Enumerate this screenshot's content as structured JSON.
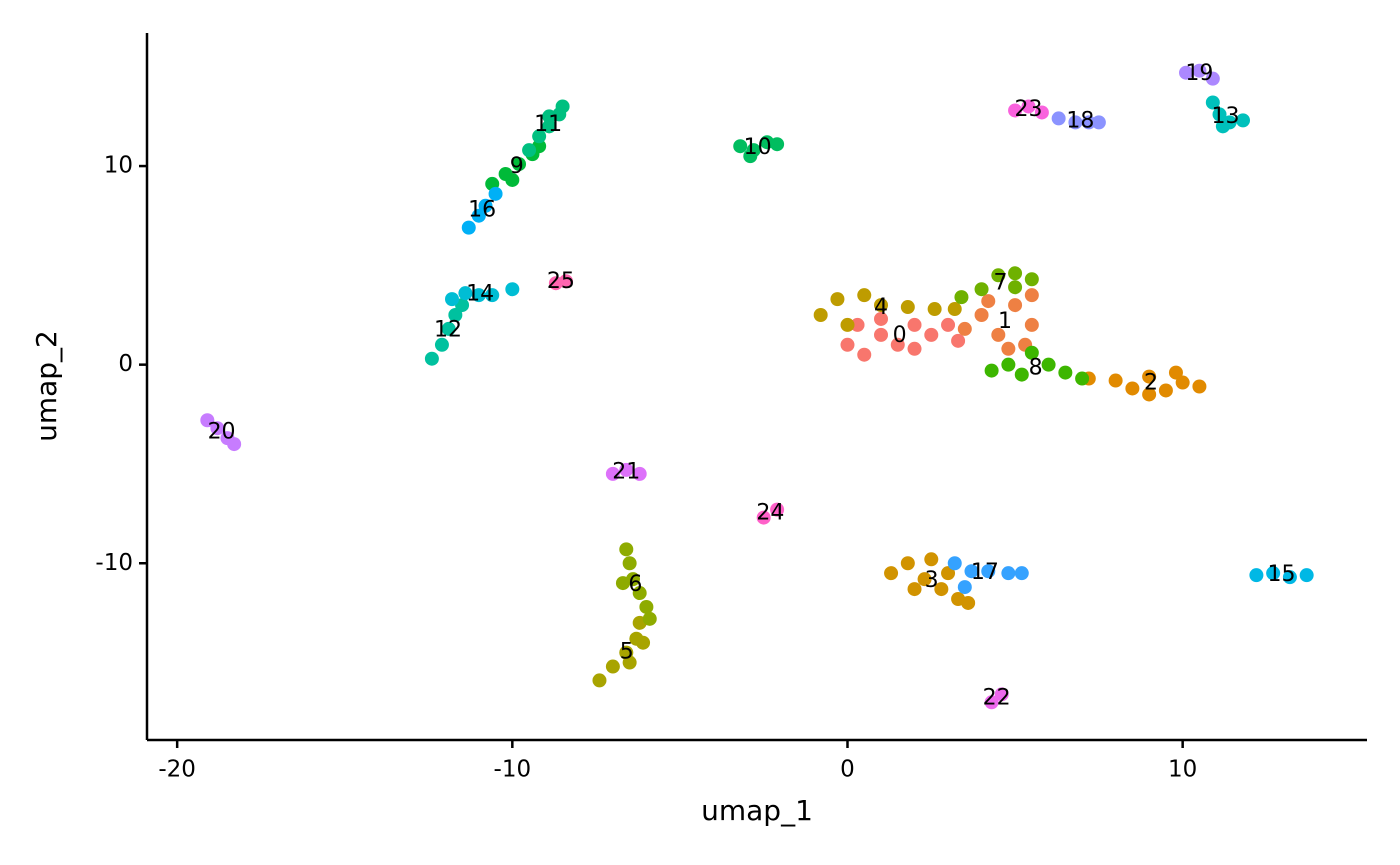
{
  "chart_data": {
    "type": "scatter",
    "xlabel": "umap_1",
    "ylabel": "umap_2",
    "xlim": [
      -20.9,
      15.5
    ],
    "ylim": [
      -18.9,
      16.7
    ],
    "xticks": [
      -20,
      -10,
      0,
      10
    ],
    "yticks": [
      -10,
      0,
      10
    ],
    "grid": false,
    "series": [
      {
        "name": "0",
        "color": "#F8766D",
        "x": [
          0,
          0.5,
          1,
          1.5,
          2,
          2.5,
          3,
          3.3,
          1,
          0.3,
          2
        ],
        "y": [
          1,
          0.5,
          1.5,
          1,
          2,
          1.5,
          2,
          1.2,
          2.3,
          2,
          0.8
        ]
      },
      {
        "name": "1",
        "color": "#EE8043",
        "x": [
          3.5,
          4,
          4.5,
          5,
          5.5,
          5.5,
          4.8,
          5.3,
          4.2
        ],
        "y": [
          1.8,
          2.5,
          1.5,
          3,
          2,
          3.5,
          0.8,
          1,
          3.2
        ]
      },
      {
        "name": "2",
        "color": "#E18A00",
        "x": [
          7.2,
          8,
          8.5,
          9,
          9.5,
          10,
          10.5,
          9.8,
          9
        ],
        "y": [
          -0.7,
          -0.8,
          -1.2,
          -0.6,
          -1.3,
          -0.9,
          -1.1,
          -0.4,
          -1.5
        ]
      },
      {
        "name": "3",
        "color": "#D19300",
        "x": [
          1.3,
          1.8,
          2.3,
          2.8,
          3.3,
          3.6,
          2.5,
          3,
          2
        ],
        "y": [
          -10.5,
          -10,
          -10.8,
          -11.3,
          -11.8,
          -12,
          -9.8,
          -10.5,
          -11.3
        ]
      },
      {
        "name": "4",
        "color": "#BE9C00",
        "x": [
          -0.8,
          -0.3,
          0.5,
          1,
          1.8,
          2.6,
          3.2,
          0
        ],
        "y": [
          2.5,
          3.3,
          3.5,
          3,
          2.9,
          2.8,
          2.8,
          2
        ]
      },
      {
        "name": "5",
        "color": "#A8A400",
        "x": [
          -6.2,
          -6.3,
          -6.6,
          -7,
          -7.4,
          -6.5,
          -6.1
        ],
        "y": [
          -13,
          -13.8,
          -14.5,
          -15.2,
          -15.9,
          -15,
          -14
        ]
      },
      {
        "name": "6",
        "color": "#8EAB00",
        "x": [
          -6.6,
          -6.5,
          -6.4,
          -6.2,
          -6,
          -5.9,
          -6.7
        ],
        "y": [
          -9.3,
          -10,
          -10.8,
          -11.5,
          -12.2,
          -12.8,
          -11
        ]
      },
      {
        "name": "7",
        "color": "#6FB100",
        "x": [
          3.4,
          4,
          4.5,
          5,
          5.5,
          5
        ],
        "y": [
          3.4,
          3.8,
          4.5,
          4.6,
          4.3,
          3.9
        ]
      },
      {
        "name": "8",
        "color": "#3DB600",
        "x": [
          4.3,
          4.8,
          5.5,
          6,
          6.5,
          7,
          5.2
        ],
        "y": [
          -0.3,
          0,
          0.6,
          0,
          -0.4,
          -0.7,
          -0.5
        ]
      },
      {
        "name": "9",
        "color": "#00BA38",
        "x": [
          -10.6,
          -10.2,
          -9.8,
          -9.4,
          -9.2,
          -10
        ],
        "y": [
          9.1,
          9.6,
          10.1,
          10.6,
          11,
          9.3
        ]
      },
      {
        "name": "10",
        "color": "#00BD5F",
        "x": [
          -3.2,
          -2.8,
          -2.4,
          -2.1,
          -2.9
        ],
        "y": [
          11,
          10.8,
          11.2,
          11.1,
          10.5
        ]
      },
      {
        "name": "11",
        "color": "#00C080",
        "x": [
          -9.5,
          -9.2,
          -8.9,
          -8.6,
          -8.5,
          -8.9
        ],
        "y": [
          10.8,
          11.5,
          12,
          12.6,
          13,
          12.5
        ]
      },
      {
        "name": "12",
        "color": "#00C19F",
        "x": [
          -12.4,
          -12.1,
          -11.9,
          -11.7,
          -11.5
        ],
        "y": [
          0.3,
          1,
          1.8,
          2.5,
          3
        ]
      },
      {
        "name": "13",
        "color": "#00C0BB",
        "x": [
          10.9,
          11.1,
          11.4,
          11.8,
          11.2
        ],
        "y": [
          13.2,
          12.6,
          12.2,
          12.3,
          12
        ]
      },
      {
        "name": "14",
        "color": "#00BDD4",
        "x": [
          -11.8,
          -11.4,
          -11,
          -10.6,
          -10
        ],
        "y": [
          3.3,
          3.6,
          3.5,
          3.5,
          3.8
        ]
      },
      {
        "name": "15",
        "color": "#00B8E5",
        "x": [
          12.2,
          12.7,
          13.2,
          13.7
        ],
        "y": [
          -10.6,
          -10.5,
          -10.7,
          -10.6
        ]
      },
      {
        "name": "16",
        "color": "#00B0F6",
        "x": [
          -11.3,
          -11,
          -10.8,
          -10.5
        ],
        "y": [
          6.9,
          7.5,
          8,
          8.6
        ]
      },
      {
        "name": "17",
        "color": "#35A2FF",
        "x": [
          3.2,
          3.7,
          4.2,
          4.8,
          5.2,
          3.5
        ],
        "y": [
          -10,
          -10.4,
          -10.4,
          -10.5,
          -10.5,
          -11.2
        ]
      },
      {
        "name": "18",
        "color": "#8B93FF",
        "x": [
          6.3,
          6.8,
          7.2,
          7.5
        ],
        "y": [
          12.4,
          12.2,
          12.2,
          12.2
        ]
      },
      {
        "name": "19",
        "color": "#AC88FF",
        "x": [
          10.1,
          10.5,
          10.9
        ],
        "y": [
          14.7,
          14.8,
          14.4
        ]
      },
      {
        "name": "20",
        "color": "#C77CFF",
        "x": [
          -19.1,
          -18.8,
          -18.5,
          -18.3
        ],
        "y": [
          -2.8,
          -3.2,
          -3.7,
          -4
        ]
      },
      {
        "name": "21",
        "color": "#DD71FA",
        "x": [
          -7,
          -6.6,
          -6.2
        ],
        "y": [
          -5.5,
          -5.3,
          -5.5
        ]
      },
      {
        "name": "22",
        "color": "#ED68ED",
        "x": [
          4.3,
          4.6
        ],
        "y": [
          -17,
          -16.6
        ]
      },
      {
        "name": "23",
        "color": "#F962DD",
        "x": [
          5,
          5.4,
          5.8
        ],
        "y": [
          12.8,
          13,
          12.7
        ]
      },
      {
        "name": "24",
        "color": "#FF61C9",
        "x": [
          -2.5,
          -2.1
        ],
        "y": [
          -7.7,
          -7.3
        ]
      },
      {
        "name": "25",
        "color": "#FF65B0",
        "x": [
          -8.7,
          -8.4
        ],
        "y": [
          4.1,
          4.2
        ]
      }
    ]
  }
}
